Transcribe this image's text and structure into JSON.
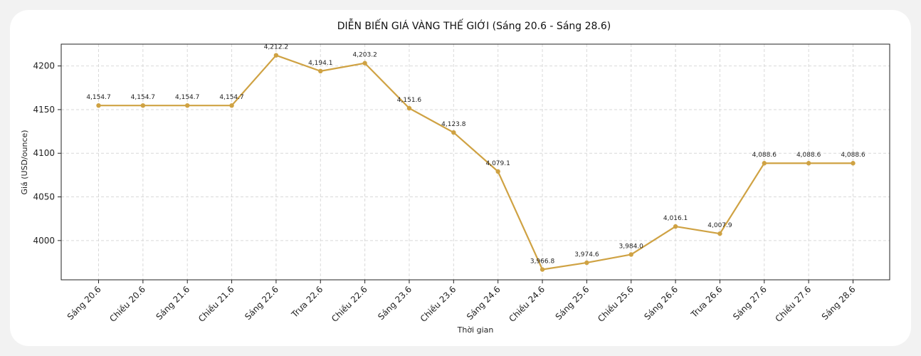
{
  "chart_data": {
    "type": "line",
    "title": "DIỄN BIẾN GIÁ VÀNG THẾ GIỚI (Sáng 20.6 - Sáng 28.6)",
    "xlabel": "Thời gian",
    "ylabel": "Giá (USD/ounce)",
    "categories": [
      "Sáng 20.6",
      "Chiều 20.6",
      "Sáng 21.6",
      "Chiều 21.6",
      "Sáng 22.6",
      "Trưa 22.6",
      "Chiều 22.6",
      "Sáng 23.6",
      "Chiều 23.6",
      "Sáng 24.6",
      "Chiều 24.6",
      "Sáng 25.6",
      "Chiều 25.6",
      "Sáng 26.6",
      "Trưa 26.6",
      "Sáng 27.6",
      "Chiều 27.6",
      "Sáng 28.6"
    ],
    "values": [
      4154.7,
      4154.7,
      4154.7,
      4154.7,
      4212.2,
      4194.1,
      4203.2,
      4151.6,
      4123.8,
      4079.1,
      3966.8,
      3974.6,
      3984.0,
      4016.1,
      4007.9,
      4088.6,
      4088.6,
      4088.6
    ],
    "data_labels": [
      "4,154.7",
      "4,154.7",
      "4,154.7",
      "4,154.7",
      "4,212.2",
      "4,194.1",
      "4,203.2",
      "4,151.6",
      "4,123.8",
      "4,079.1",
      "3,966.8",
      "3,974.6",
      "3,984.0",
      "4,016.1",
      "4,007.9",
      "4,088.6",
      "4,088.6",
      "4,088.6"
    ],
    "yticks": [
      4000,
      4050,
      4100,
      4150,
      4200
    ],
    "ylim": [
      3955,
      4225
    ],
    "grid": true,
    "line_color": "#cfa243",
    "grid_color": "#d9d9d9"
  }
}
